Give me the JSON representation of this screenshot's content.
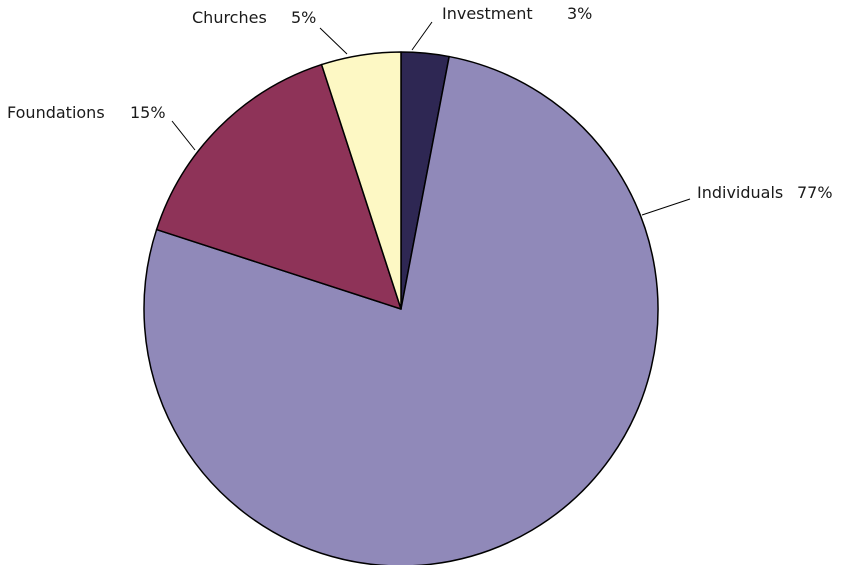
{
  "chart_data": {
    "type": "pie",
    "slices": [
      {
        "label": "Investment",
        "value": 3,
        "value_label": "3%",
        "color": "#2e2753"
      },
      {
        "label": "Individuals",
        "value": 77,
        "value_label": "77%",
        "color": "#9089b9"
      },
      {
        "label": "Foundations",
        "value": 15,
        "value_label": "15%",
        "color": "#8e3358"
      },
      {
        "label": "Churches",
        "value": 5,
        "value_label": "5%",
        "color": "#fdf8c4"
      }
    ],
    "title": "",
    "start_angle": "12 o'clock",
    "direction": "clockwise",
    "legend": "none (direct labels with leader lines)"
  }
}
